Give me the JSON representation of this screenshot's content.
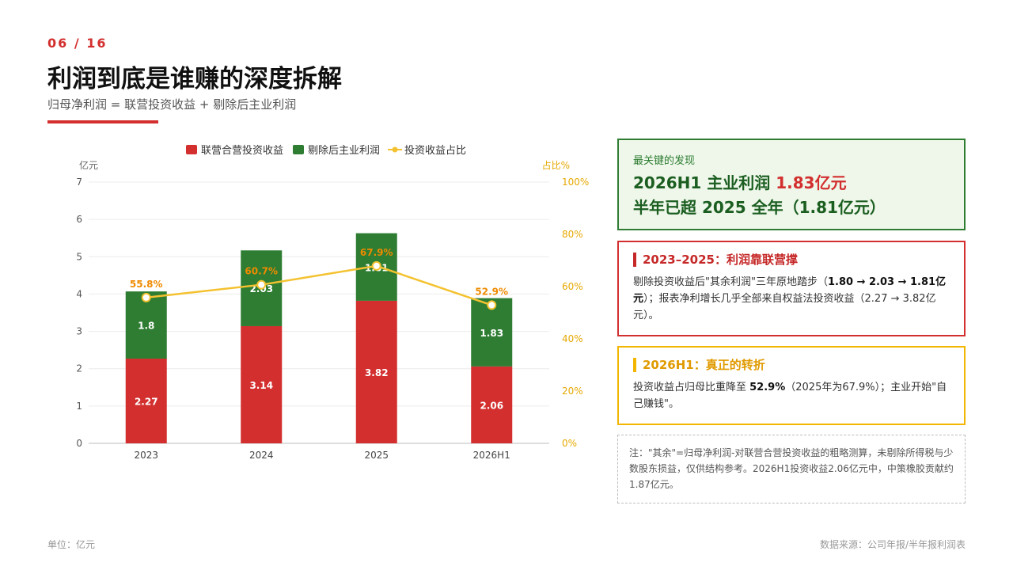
{
  "header": {
    "page_number": "06 / 16",
    "title": "利润到底是谁赚的深度拆解",
    "subtitle": "归母净利润 = 联营投资收益 + 剔除后主业利润"
  },
  "chart_data": {
    "type": "bar",
    "stacked": true,
    "categories": [
      "2023",
      "2024",
      "2025",
      "2026H1"
    ],
    "series": [
      {
        "name": "联营合营投资收益",
        "kind": "bar",
        "axis": "left",
        "color": "#d32f2f",
        "values": [
          2.27,
          3.14,
          3.82,
          2.06
        ],
        "labels": [
          "2.27",
          "3.14",
          "3.82",
          "2.06"
        ]
      },
      {
        "name": "剔除后主业利润",
        "kind": "bar",
        "axis": "left",
        "color": "#2e7d32",
        "values": [
          1.8,
          2.03,
          1.81,
          1.83
        ],
        "labels": [
          "1.8",
          "2.03",
          "1.81",
          "1.83"
        ]
      },
      {
        "name": "投资收益占比",
        "kind": "line",
        "axis": "right",
        "color": "#f4c230",
        "values": [
          55.8,
          60.7,
          67.9,
          52.9
        ],
        "labels": [
          "55.8%",
          "60.7%",
          "67.9%",
          "52.9%"
        ]
      }
    ],
    "y_left": {
      "label": "亿元",
      "min": 0,
      "max": 7,
      "ticks": [
        "0",
        "1",
        "2",
        "3",
        "4",
        "5",
        "6",
        "7"
      ]
    },
    "y_right": {
      "label": "占比%",
      "min": 0,
      "max": 100,
      "ticks": [
        "0%",
        "20%",
        "40%",
        "60%",
        "80%",
        "100%"
      ]
    },
    "grid": true,
    "legend_position": "top"
  },
  "key_card": {
    "kicker": "最关键的发现",
    "line1_prefix": "2026H1 主业利润 ",
    "line1_highlight": "1.83亿元",
    "line2": "半年已超 2025 全年（1.81亿元）"
  },
  "red_card": {
    "heading": "2023–2025：利润靠联营撑",
    "t1": "剔除投资收益后\"其余利润\"三年原地踏步（",
    "t1_bold": "1.80 → 2.03 → 1.81亿元",
    "t2": "）；报表净利增长几乎全部来自权益法投资收益（2.27 → 3.82亿元）。"
  },
  "yellow_card": {
    "heading": "2026H1：真正的转折",
    "t1": "投资收益占归母比重降至 ",
    "t1_bold": "52.9%",
    "t2": "（2025年为67.9%）；主业开始\"自己赚钱\"。"
  },
  "note": "注：\"其余\"=归母净利润-对联营合营投资收益的粗略测算，未剔除所得税与少数股东损益，仅供结构参考。2026H1投资收益2.06亿元中，中策橡胶贡献约1.87亿元。",
  "footer": {
    "unit": "单位：亿元",
    "source": "数据来源：公司年报/半年报利润表"
  }
}
